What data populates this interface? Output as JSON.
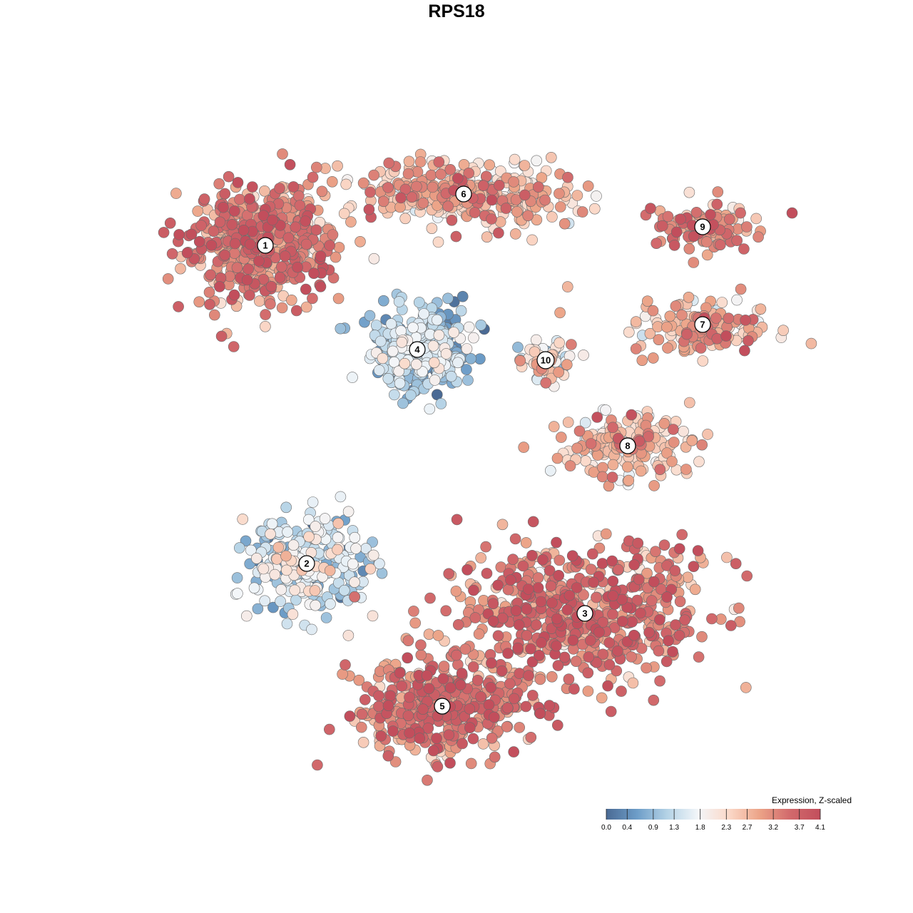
{
  "chart_data": {
    "type": "scatter",
    "title": "RPS18",
    "xlabel": "",
    "ylabel": "",
    "grid": false,
    "legend_position": "bottom-right",
    "color_scale": {
      "title": "Expression, Z-scaled",
      "ticks": [
        "0.0",
        "0.4",
        "0.9",
        "1.3",
        "1.8",
        "2.3",
        "2.7",
        "3.2",
        "3.7",
        "4.1"
      ],
      "min": 0.0,
      "max": 4.1,
      "palette": [
        "#4a6a94",
        "#6d9dc8",
        "#b5d3e6",
        "#f3f6f9",
        "#fbd9c9",
        "#eca488",
        "#d26a6c",
        "#c24e5c"
      ]
    },
    "clusters": [
      {
        "label": "1",
        "center": [
          372,
          344
        ],
        "spread": [
          120,
          105
        ],
        "n": 520,
        "mean_expr": 3.2
      },
      {
        "label": "6",
        "center": [
          650,
          272
        ],
        "spread": [
          170,
          55
        ],
        "n": 340,
        "mean_expr": 2.7
      },
      {
        "label": "9",
        "center": [
          985,
          318
        ],
        "spread": [
          90,
          38
        ],
        "n": 110,
        "mean_expr": 3.1
      },
      {
        "label": "7",
        "center": [
          985,
          455
        ],
        "spread": [
          115,
          45
        ],
        "n": 160,
        "mean_expr": 2.8
      },
      {
        "label": "4",
        "center": [
          585,
          490
        ],
        "spread": [
          80,
          70
        ],
        "n": 400,
        "mean_expr": 1.0
      },
      {
        "label": "10",
        "center": [
          765,
          505
        ],
        "spread": [
          40,
          40
        ],
        "n": 70,
        "mean_expr": 1.9
      },
      {
        "label": "8",
        "center": [
          880,
          625
        ],
        "spread": [
          105,
          55
        ],
        "n": 200,
        "mean_expr": 2.6
      },
      {
        "label": "2",
        "center": [
          430,
          790
        ],
        "spread": [
          110,
          80
        ],
        "n": 260,
        "mean_expr": 1.4
      },
      {
        "label": "3",
        "center": [
          820,
          860
        ],
        "spread": [
          210,
          110
        ],
        "n": 560,
        "mean_expr": 3.4
      },
      {
        "label": "5",
        "center": [
          620,
          990
        ],
        "spread": [
          140,
          80
        ],
        "n": 430,
        "mean_expr": 3.3
      }
    ]
  }
}
